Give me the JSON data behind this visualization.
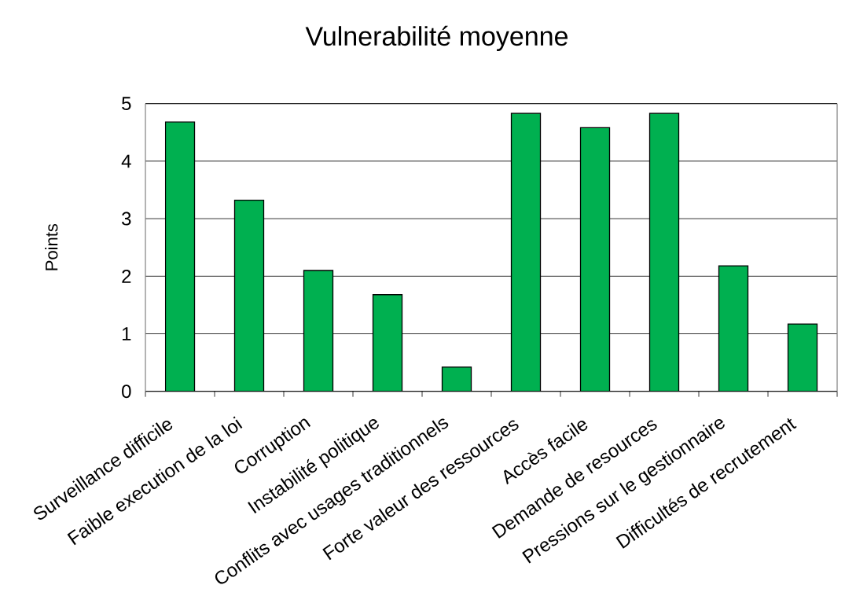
{
  "chart_data": {
    "type": "bar",
    "title": "Vulnerabilité moyenne",
    "ylabel": "Points",
    "categories": [
      "Surveillance difficile",
      "Faible execution de la loi",
      "Corruption",
      "Instabilité politique",
      "Conflits avec usages traditionnels",
      "Forte valeur des ressources",
      "Accès facile",
      "Demande de resources",
      "Pressions sur le gestionnaire",
      "Difficultés de recrutement"
    ],
    "values": [
      4.68,
      3.32,
      2.1,
      1.68,
      0.42,
      4.83,
      4.58,
      4.83,
      2.18,
      1.17
    ],
    "color": "#00b050",
    "ylim": [
      0,
      5
    ],
    "yticks": [
      0,
      1,
      2,
      3,
      4,
      5
    ],
    "grid": "y"
  }
}
